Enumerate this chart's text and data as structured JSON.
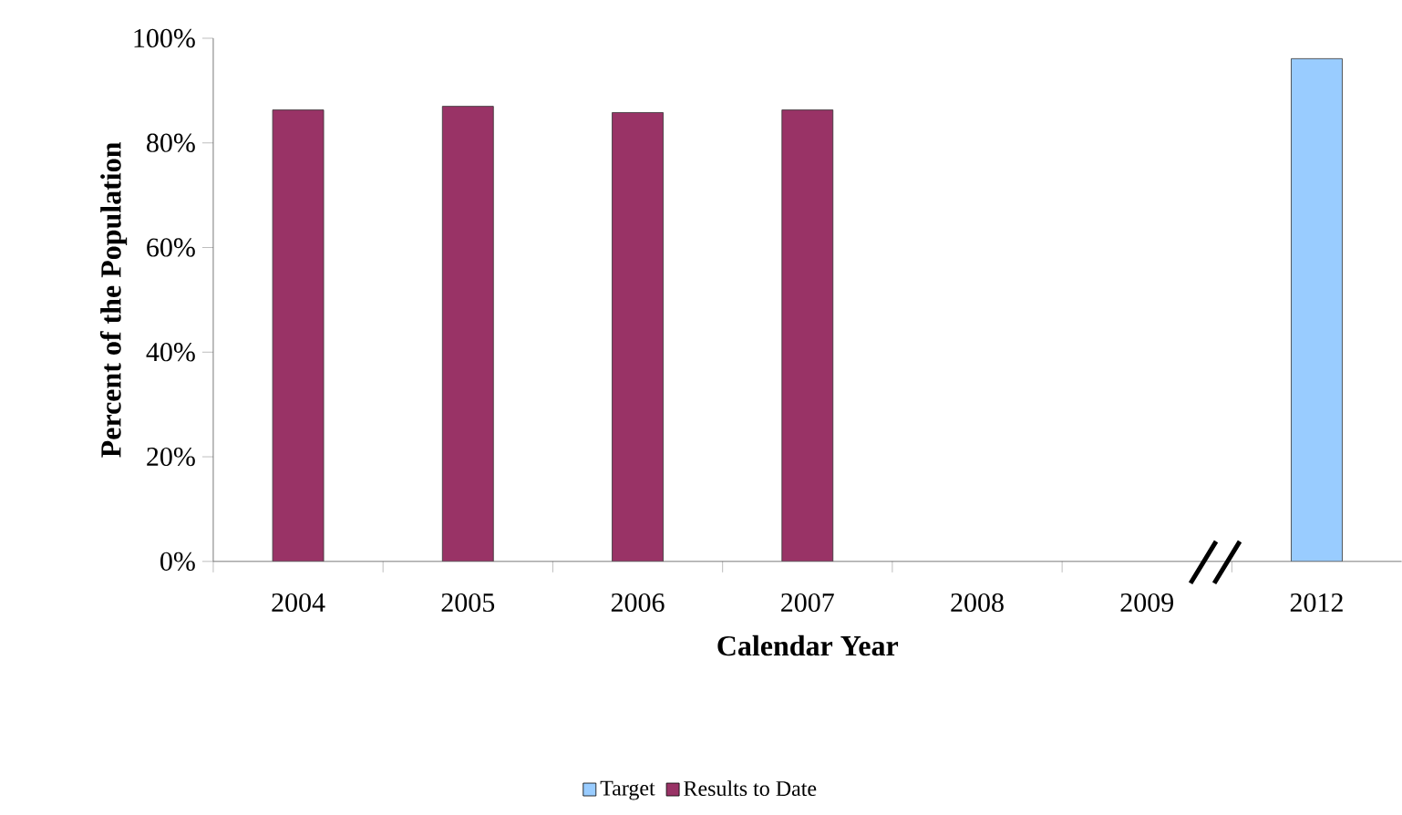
{
  "chart_data": {
    "type": "bar",
    "xlabel": "Calendar Year",
    "ylabel": "Percent of the Population",
    "categories": [
      "2004",
      "2005",
      "2006",
      "2007",
      "2008",
      "2009",
      "2012"
    ],
    "series": [
      {
        "name": "Target",
        "color": "#99ccff",
        "values": [
          null,
          null,
          null,
          null,
          null,
          null,
          96.1
        ]
      },
      {
        "name": "Results to Date",
        "color": "#993366",
        "values": [
          86.3,
          87.0,
          85.8,
          86.3,
          null,
          null,
          null
        ]
      }
    ],
    "ylim": [
      0,
      100
    ],
    "yticks": [
      {
        "value": 0,
        "label": "0%"
      },
      {
        "value": 20,
        "label": "20%"
      },
      {
        "value": 40,
        "label": "40%"
      },
      {
        "value": 60,
        "label": "60%"
      },
      {
        "value": 80,
        "label": "80%"
      },
      {
        "value": 100,
        "label": "100%"
      }
    ],
    "legend": "bottom"
  }
}
